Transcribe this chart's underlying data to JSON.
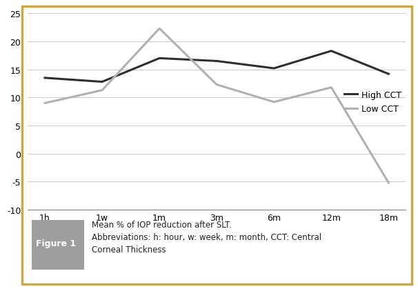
{
  "x_labels": [
    "1h",
    "1w",
    "1m",
    "3m",
    "6m",
    "12m",
    "18m"
  ],
  "high_cct": [
    13.5,
    12.8,
    17.0,
    16.5,
    15.2,
    18.3,
    14.2
  ],
  "low_cct": [
    9.0,
    11.3,
    22.3,
    12.3,
    9.2,
    11.8,
    -5.2
  ],
  "high_cct_color": "#2e2e2e",
  "low_cct_color": "#b0b0b0",
  "high_cct_label": "High CCT",
  "low_cct_label": "Low CCT",
  "ylim": [
    -10,
    25
  ],
  "yticks": [
    -10,
    -5,
    0,
    5,
    10,
    15,
    20,
    25
  ],
  "grid_color": "#cccccc",
  "border_color": "#c8a84b",
  "fig_bg": "#ffffff",
  "caption_title": "Figure 1",
  "caption_title_bg": "#a0a0a0",
  "caption_text_line1": "Mean % of IOP reduction after SLT.",
  "caption_text_line2": "Abbreviations: h: hour, w: week, m: month, CCT: Central",
  "caption_text_line3": "Corneal Thickness",
  "line_width": 2.2
}
